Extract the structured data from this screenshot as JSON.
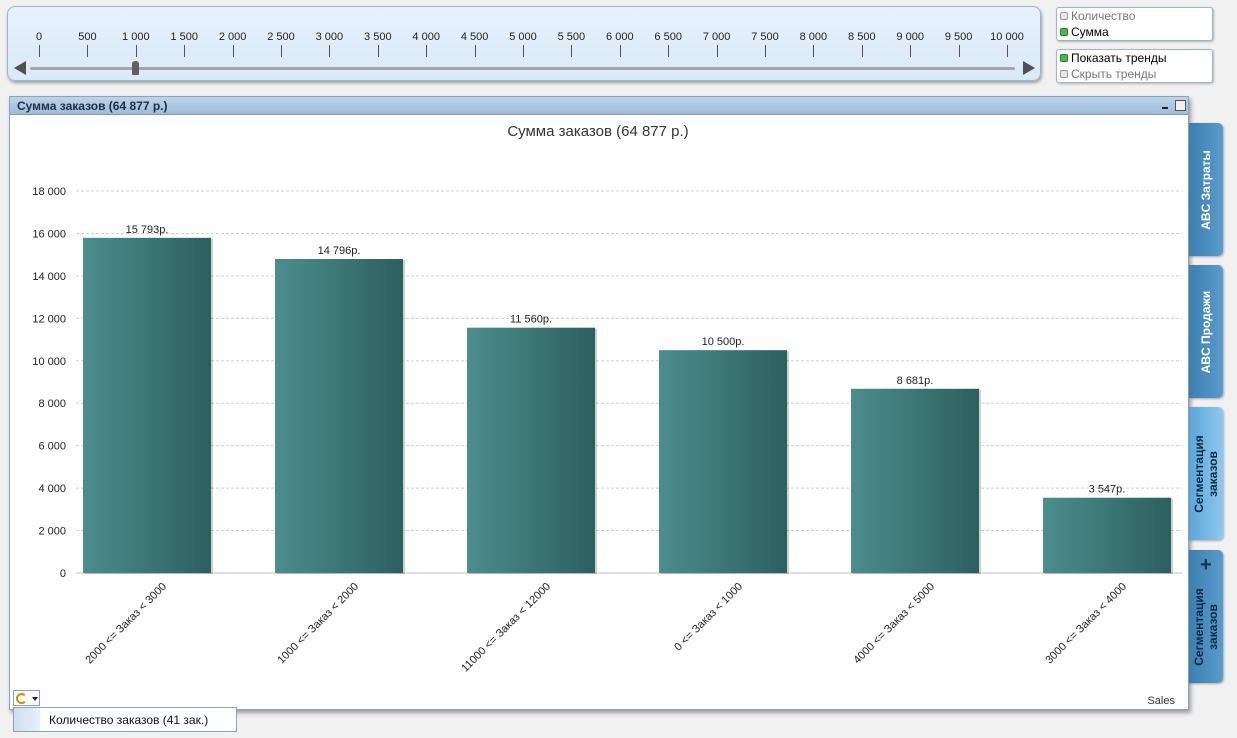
{
  "slider": {
    "ticks": [
      "0",
      "500",
      "1 000",
      "1 500",
      "2 000",
      "2 500",
      "3 000",
      "3 500",
      "4 000",
      "4 500",
      "5 000",
      "5 500",
      "6 000",
      "6 500",
      "7 000",
      "7 500",
      "8 000",
      "8 500",
      "9 000",
      "9 500",
      "10 000"
    ],
    "value": 1000
  },
  "measure_list": {
    "items": [
      {
        "label": "Количество",
        "selected": false
      },
      {
        "label": "Сумма",
        "selected": true
      }
    ]
  },
  "trend_list": {
    "items": [
      {
        "label": "Показать тренды",
        "selected": true
      },
      {
        "label": "Скрыть тренды",
        "selected": false
      }
    ]
  },
  "chart_window": {
    "caption": "Сумма заказов (64 877 р.)",
    "status_text": "Количество заказов (41 зак.)"
  },
  "side_tabs": [
    {
      "label": "ABC Затраты",
      "active": false
    },
    {
      "label": "ABC Продажи",
      "active": false
    },
    {
      "label": "Сегментация заказов",
      "active": true
    },
    {
      "label": "Сегментация заказов",
      "active": false,
      "plus": "+"
    }
  ],
  "colors": {
    "bar_light": "#4a8e8c",
    "bar_dark": "#2d5f5d",
    "tab": "#3b7fb0",
    "tab_active": "#74b6e3"
  },
  "chart_data": {
    "type": "bar",
    "title": "Сумма заказов (64 877 р.)",
    "categories": [
      "2000 <= Заказ < 3000",
      "1000 <= Заказ < 2000",
      "11000 <= Заказ < 12000",
      "0 <= Заказ < 1000",
      "4000 <= Заказ < 5000",
      "3000 <= Заказ < 4000"
    ],
    "values": [
      15793,
      14796,
      11560,
      10500,
      8681,
      3547
    ],
    "value_labels": [
      "15 793р.",
      "14 796р.",
      "11 560р.",
      "10 500р.",
      "8 681р.",
      "3 547р."
    ],
    "ylim": [
      0,
      18000
    ],
    "yticks": [
      "0",
      "2 000",
      "4 000",
      "6 000",
      "8 000",
      "10 000",
      "12 000",
      "14 000",
      "16 000",
      "18 000"
    ],
    "grid": true,
    "corner_label": "Sales"
  }
}
